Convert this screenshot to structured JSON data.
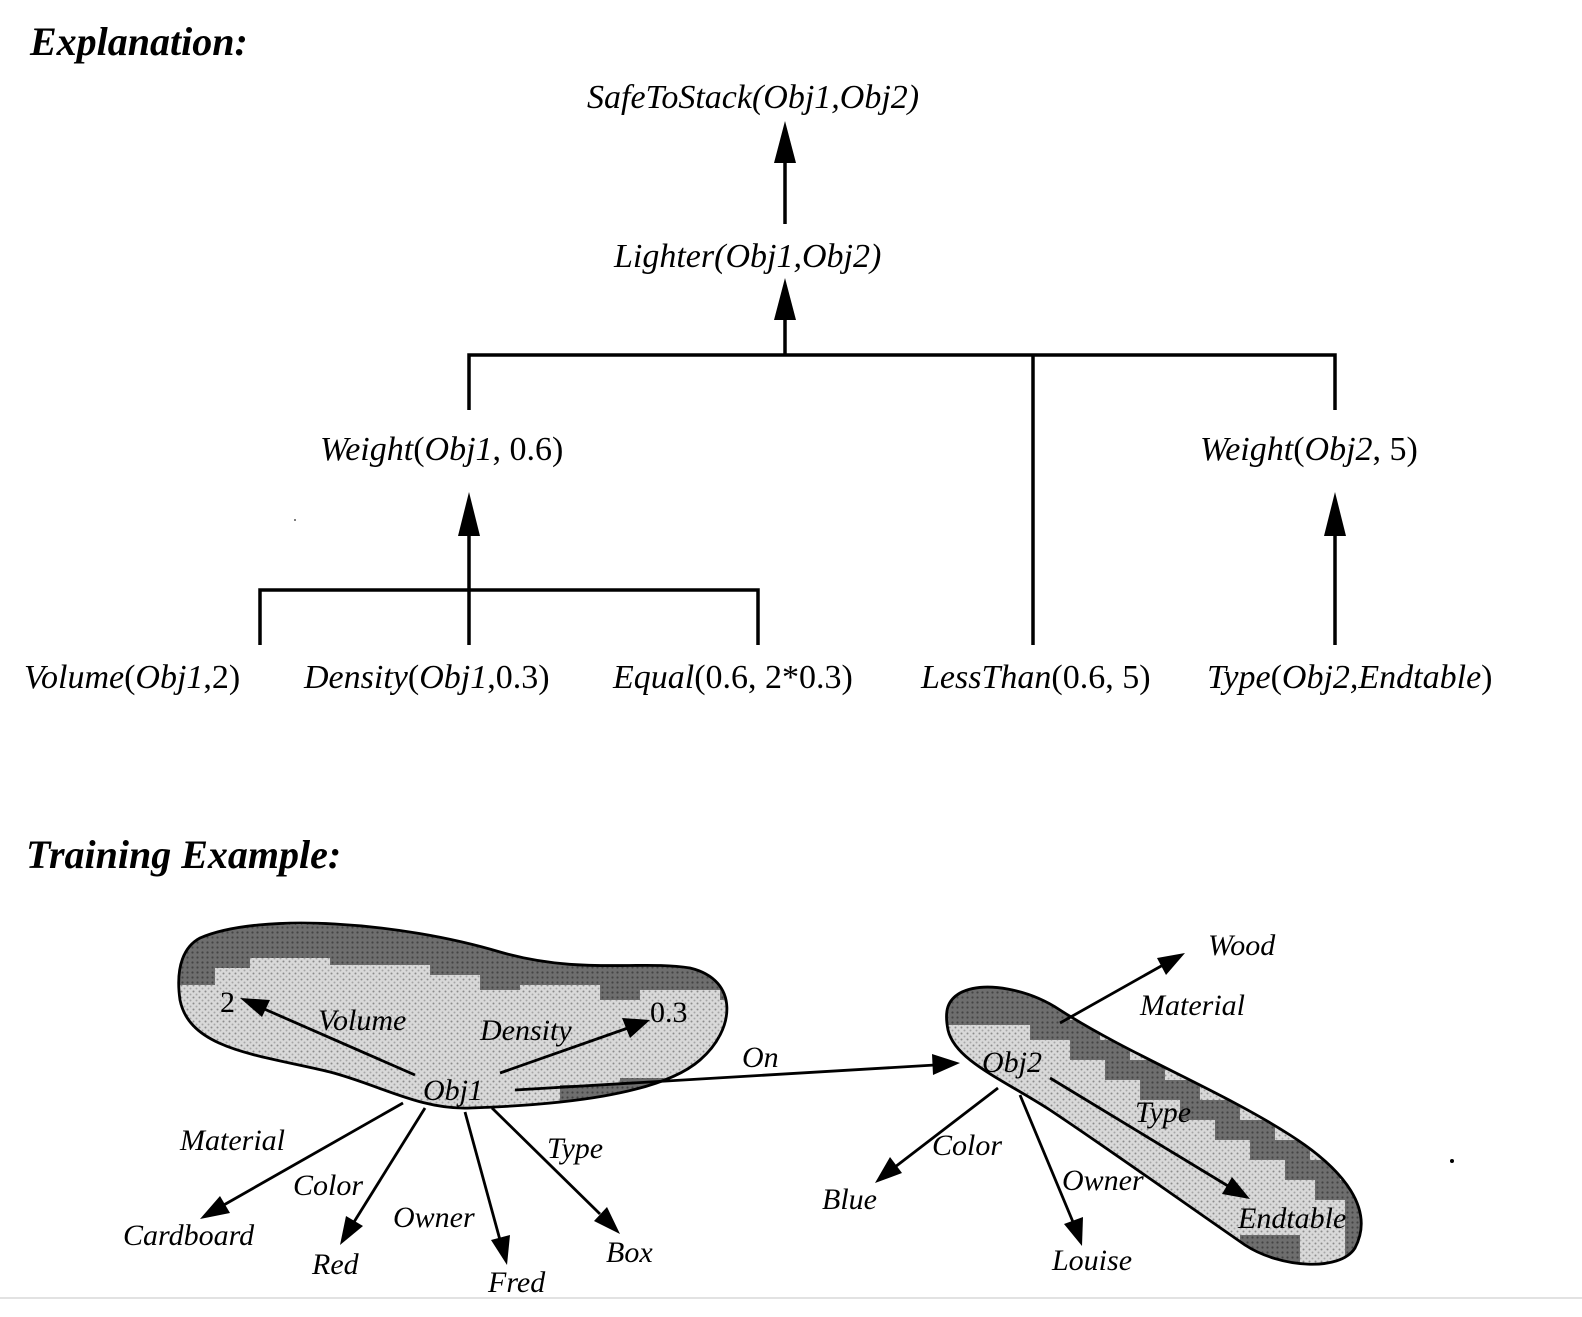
{
  "explanation": {
    "heading": "Explanation:",
    "nodes": {
      "safe_pred": "SafeToStack",
      "safe_args": "(Obj1,Obj2)",
      "lighter_pred": "Lighter",
      "lighter_args": "(Obj1,Obj2)",
      "weight1_pred": "Weight",
      "weight1_open": "(",
      "weight1_obj": "Obj1",
      "weight1_rest": ", 0.6)",
      "weight2_pred": "Weight",
      "weight2_open": "(",
      "weight2_obj": "Obj2",
      "weight2_rest": ", 5)",
      "volume_pred": "Volume",
      "volume_open": "(",
      "volume_obj": "Obj1",
      "volume_rest": ",2)",
      "density_pred": "Density",
      "density_open": "(",
      "density_obj": "Obj1",
      "density_rest": ",0.3)",
      "equal_pred": "Equal",
      "equal_args": "(0.6, 2*0.3)",
      "lessthan_pred": "LessThan",
      "lessthan_args": "(0.6, 5)",
      "type_pred": "Type",
      "type_open": "(",
      "type_obj": "Obj2,Endtable",
      "type_close": ")"
    }
  },
  "training": {
    "heading": "Training Example:",
    "obj1": {
      "label": "Obj1",
      "volume_value": "2",
      "density_value": "0.3",
      "edges": {
        "volume": "Volume",
        "density": "Density",
        "material": "Material",
        "color": "Color",
        "owner": "Owner",
        "type": "Type",
        "on": "On"
      },
      "targets": {
        "material": "Cardboard",
        "color": "Red",
        "owner": "Fred",
        "type": "Box"
      }
    },
    "obj2": {
      "label": "Obj2",
      "edges": {
        "material": "Material",
        "color": "Color",
        "owner": "Owner",
        "type": "Type"
      },
      "targets": {
        "material": "Wood",
        "color": "Blue",
        "owner": "Louise",
        "type": "Endtable"
      }
    }
  }
}
